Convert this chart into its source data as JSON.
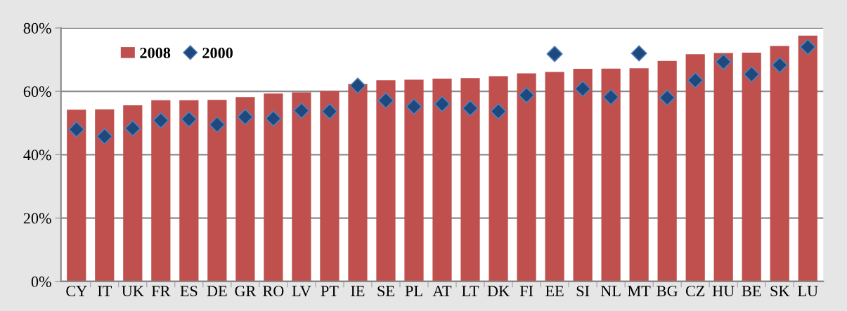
{
  "chart_data": {
    "type": "bar",
    "categories": [
      "CY",
      "IT",
      "UK",
      "FR",
      "ES",
      "DE",
      "GR",
      "RO",
      "LV",
      "PT",
      "IE",
      "SE",
      "PL",
      "AT",
      "LT",
      "DK",
      "FI",
      "EE",
      "SI",
      "NL",
      "MT",
      "BG",
      "CZ",
      "HU",
      "BE",
      "SK",
      "LU"
    ],
    "series": [
      {
        "name": "2008",
        "color": "#c0504d",
        "values": [
          54.2,
          54.3,
          55.6,
          57.2,
          57.2,
          57.3,
          58.2,
          59.3,
          59.7,
          60.1,
          62.3,
          63.5,
          63.7,
          64.0,
          64.2,
          64.8,
          65.7,
          66.1,
          67.1,
          67.2,
          67.3,
          69.6,
          71.7,
          72.1,
          72.2,
          74.3,
          77.6
        ]
      },
      {
        "name": "2000",
        "type": "scatter",
        "color": "#1f497d",
        "marker": "diamond",
        "values": [
          48.0,
          45.8,
          48.3,
          50.8,
          51.2,
          49.5,
          51.9,
          51.4,
          53.9,
          53.7,
          61.8,
          57.1,
          55.2,
          56.0,
          54.7,
          53.7,
          58.8,
          71.8,
          60.8,
          58.2,
          72.0,
          58.0,
          63.5,
          69.3,
          65.4,
          68.3,
          74.0
        ]
      }
    ],
    "ylim": [
      0,
      80
    ],
    "yticks": [
      {
        "value": 0,
        "label": "0%"
      },
      {
        "value": 20,
        "label": "20%"
      },
      {
        "value": 40,
        "label": "40%"
      },
      {
        "value": 60,
        "label": "60%"
      },
      {
        "value": 80,
        "label": "80%"
      }
    ],
    "grid": "y",
    "legend": "top left"
  }
}
